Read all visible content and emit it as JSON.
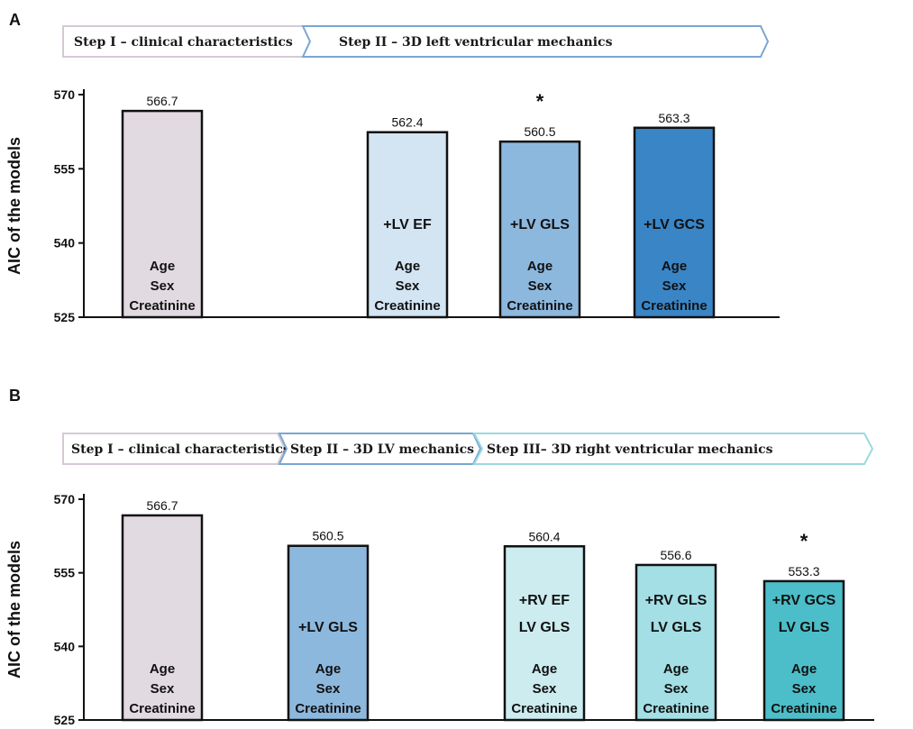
{
  "colors": {
    "clinical": "#e2dae1",
    "clinical_border": "#d4cad5",
    "lv_ef": "#d3e4f2",
    "lv_gls": "#8db8de",
    "lv_gcs": "#3a85c6",
    "lv_step_border": "#7aa6d4",
    "rv_ef": "#ccecef",
    "rv_gls": "#a3dfe5",
    "rv_gcs": "#4bbec9",
    "rv_step_border": "#9cd8e2"
  },
  "chart_data": [
    {
      "panel": "A",
      "type": "bar",
      "ylabel": "AIC of the models",
      "ylim": [
        525,
        570
      ],
      "yticks": [
        525,
        540,
        555,
        570
      ],
      "steps": [
        {
          "label": "Step I – clinical characteristics",
          "color_key": "clinical_border"
        },
        {
          "label": "Step II – 3D left ventricular mechanics",
          "color_key": "lv_step_border"
        }
      ],
      "bars": [
        {
          "value": 566.7,
          "value_label": "566.7",
          "added": [],
          "base": [
            "Age",
            "Sex",
            "Creatinine"
          ],
          "color_key": "clinical",
          "star": false
        },
        {
          "value": 562.4,
          "value_label": "562.4",
          "added": [
            "+LV EF"
          ],
          "base": [
            "Age",
            "Sex",
            "Creatinine"
          ],
          "color_key": "lv_ef",
          "star": false
        },
        {
          "value": 560.5,
          "value_label": "560.5",
          "added": [
            "+LV GLS"
          ],
          "base": [
            "Age",
            "Sex",
            "Creatinine"
          ],
          "color_key": "lv_gls",
          "star": true,
          "star_label": "*"
        },
        {
          "value": 563.3,
          "value_label": "563.3",
          "added": [
            "+LV GCS"
          ],
          "base": [
            "Age",
            "Sex",
            "Creatinine"
          ],
          "color_key": "lv_gcs",
          "star": false
        }
      ]
    },
    {
      "panel": "B",
      "type": "bar",
      "ylabel": "AIC of the models",
      "ylim": [
        525,
        570
      ],
      "yticks": [
        525,
        540,
        555,
        570
      ],
      "steps": [
        {
          "label": "Step I – clinical characteristics",
          "color_key": "clinical_border"
        },
        {
          "label": "Step II – 3D LV mechanics",
          "color_key": "lv_step_border"
        },
        {
          "label": "Step III–  3D right ventricular mechanics",
          "color_key": "rv_step_border"
        }
      ],
      "bars": [
        {
          "value": 566.7,
          "value_label": "566.7",
          "added": [],
          "base": [
            "Age",
            "Sex",
            "Creatinine"
          ],
          "color_key": "clinical",
          "star": false
        },
        {
          "value": 560.5,
          "value_label": "560.5",
          "added": [
            "+LV GLS"
          ],
          "base": [
            "Age",
            "Sex",
            "Creatinine"
          ],
          "color_key": "lv_gls",
          "star": false
        },
        {
          "value": 560.4,
          "value_label": "560.4",
          "added": [
            "+RV EF",
            "LV GLS"
          ],
          "base": [
            "Age",
            "Sex",
            "Creatinine"
          ],
          "color_key": "rv_ef",
          "star": false
        },
        {
          "value": 556.6,
          "value_label": "556.6",
          "added": [
            "+RV GLS",
            "LV GLS"
          ],
          "base": [
            "Age",
            "Sex",
            "Creatinine"
          ],
          "color_key": "rv_gls",
          "star": false
        },
        {
          "value": 553.3,
          "value_label": "553.3",
          "added": [
            "+RV GCS",
            "LV GLS"
          ],
          "base": [
            "Age",
            "Sex",
            "Creatinine"
          ],
          "color_key": "rv_gcs",
          "star": true,
          "star_label": "*"
        }
      ]
    }
  ]
}
